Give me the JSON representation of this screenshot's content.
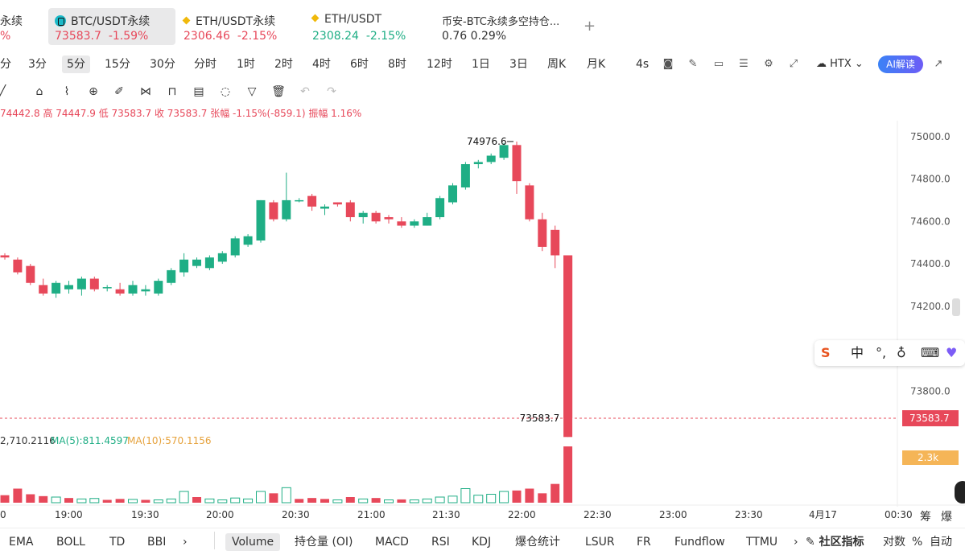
{
  "tabs": [
    {
      "name": "永续",
      "price": "",
      "change": "%"
    },
    {
      "name": "BTC/USDT永续",
      "price": "73583.7",
      "change": "-1.59%"
    },
    {
      "name": "ETH/USDT永续",
      "price": "2306.46",
      "change": "-2.15%"
    },
    {
      "name": "ETH/USDT",
      "price": "2308.24",
      "change": "-2.15%"
    },
    {
      "name": "币安-BTC永续多空持仓...",
      "price": "0.76",
      "change": "0.29%"
    }
  ],
  "add_tab": "+",
  "intervals": [
    "分",
    "3分",
    "5分",
    "15分",
    "30分",
    "分时",
    "1时",
    "2时",
    "4时",
    "6时",
    "8时",
    "12时",
    "1日",
    "3日",
    "周K",
    "月K",
    "4s"
  ],
  "exchange": "HTX",
  "ai_label": "AI解读",
  "ohlc_line": "74442.8 高 74447.9 低 73583.7 收 73583.7 张幅 -1.15%(-859.1) 振幅 1.16%",
  "colors": {
    "up": "#1fae85",
    "down": "#e7485a",
    "ma5": "#1fae85",
    "ma10": "#e6a23c"
  },
  "chart_data": {
    "type": "candlestick",
    "y_ticks": [
      "75000.0",
      "74800.0",
      "74600.0",
      "74400.0",
      "74200.0",
      "74000.0",
      "73800.0"
    ],
    "ylim": [
      73710,
      75075
    ],
    "x_ticks": [
      "0",
      "19:00",
      "19:30",
      "20:00",
      "20:30",
      "21:00",
      "21:30",
      "22:00",
      "22:30",
      "23:00",
      "23:30",
      "4月17",
      "00:30"
    ],
    "high_label": "74976.6",
    "last_label": "73583.7",
    "last_price_tag": "73583.7",
    "candles": [
      [
        74440,
        74450,
        74420,
        74430
      ],
      [
        74420,
        74430,
        74350,
        74360
      ],
      [
        74390,
        74400,
        74300,
        74310
      ],
      [
        74300,
        74330,
        74250,
        74260
      ],
      [
        74260,
        74320,
        74240,
        74310
      ],
      [
        74280,
        74320,
        74260,
        74300
      ],
      [
        74280,
        74340,
        74250,
        74330
      ],
      [
        74330,
        74340,
        74270,
        74280
      ],
      [
        74290,
        74300,
        74270,
        74290
      ],
      [
        74280,
        74310,
        74250,
        74260
      ],
      [
        74260,
        74320,
        74250,
        74300
      ],
      [
        74270,
        74300,
        74250,
        74280
      ],
      [
        74260,
        74330,
        74250,
        74320
      ],
      [
        74310,
        74380,
        74300,
        74370
      ],
      [
        74360,
        74450,
        74340,
        74420
      ],
      [
        74390,
        74430,
        74380,
        74420
      ],
      [
        74380,
        74440,
        74370,
        74430
      ],
      [
        74410,
        74460,
        74400,
        74450
      ],
      [
        74440,
        74530,
        74430,
        74520
      ],
      [
        74490,
        74540,
        74480,
        74530
      ],
      [
        74510,
        74700,
        74500,
        74700
      ],
      [
        74690,
        74700,
        74600,
        74610
      ],
      [
        74610,
        74830,
        74600,
        74700
      ],
      [
        74700,
        74710,
        74690,
        74700
      ],
      [
        74720,
        74730,
        74650,
        74670
      ],
      [
        74660,
        74680,
        74630,
        74670
      ],
      [
        74690,
        74690,
        74670,
        74680
      ],
      [
        74690,
        74700,
        74600,
        74620
      ],
      [
        74620,
        74650,
        74590,
        74640
      ],
      [
        74640,
        74650,
        74590,
        74600
      ],
      [
        74620,
        74630,
        74590,
        74610
      ],
      [
        74600,
        74620,
        74570,
        74580
      ],
      [
        74580,
        74610,
        74570,
        74600
      ],
      [
        74580,
        74640,
        74580,
        74620
      ],
      [
        74620,
        74720,
        74610,
        74710
      ],
      [
        74690,
        74780,
        74680,
        74770
      ],
      [
        74760,
        74880,
        74750,
        74870
      ],
      [
        74870,
        74890,
        74850,
        74880
      ],
      [
        74880,
        74920,
        74870,
        74910
      ],
      [
        74900,
        74970,
        74890,
        74960
      ],
      [
        74960,
        74976.6,
        74730,
        74790
      ],
      [
        74770,
        74780,
        74600,
        74610
      ],
      [
        74610,
        74640,
        74460,
        74480
      ],
      [
        74560,
        74580,
        74380,
        74440
      ],
      [
        74440,
        74440,
        73583.7,
        73583.7
      ]
    ],
    "volume_labels": {
      "total": "2,710.2116",
      "ma5": "MA(5):811.4597",
      "ma10": "MA(10):570.1156",
      "last_tag": "2.3k"
    },
    "volumes": [
      [
        80,
        "down"
      ],
      [
        150,
        "down"
      ],
      [
        90,
        "down"
      ],
      [
        70,
        "down"
      ],
      [
        60,
        "up"
      ],
      [
        50,
        "down"
      ],
      [
        40,
        "up"
      ],
      [
        45,
        "up"
      ],
      [
        30,
        "down"
      ],
      [
        40,
        "down"
      ],
      [
        35,
        "up"
      ],
      [
        30,
        "down"
      ],
      [
        30,
        "up"
      ],
      [
        40,
        "up"
      ],
      [
        120,
        "up"
      ],
      [
        60,
        "down"
      ],
      [
        40,
        "up"
      ],
      [
        30,
        "up"
      ],
      [
        50,
        "up"
      ],
      [
        40,
        "up"
      ],
      [
        120,
        "up"
      ],
      [
        100,
        "down"
      ],
      [
        160,
        "up"
      ],
      [
        40,
        "down"
      ],
      [
        50,
        "down"
      ],
      [
        40,
        "down"
      ],
      [
        30,
        "up"
      ],
      [
        60,
        "down"
      ],
      [
        40,
        "up"
      ],
      [
        50,
        "down"
      ],
      [
        30,
        "up"
      ],
      [
        35,
        "down"
      ],
      [
        30,
        "up"
      ],
      [
        40,
        "up"
      ],
      [
        60,
        "up"
      ],
      [
        70,
        "up"
      ],
      [
        150,
        "up"
      ],
      [
        80,
        "up"
      ],
      [
        90,
        "up"
      ],
      [
        120,
        "up"
      ],
      [
        130,
        "down"
      ],
      [
        150,
        "down"
      ],
      [
        100,
        "down"
      ],
      [
        200,
        "down"
      ],
      [
        600,
        "down"
      ]
    ]
  },
  "indicators": [
    "EMA",
    "BOLL",
    "TD",
    "BBI",
    "›",
    "Volume",
    "持仓量 (OI)",
    "MACD",
    "RSI",
    "KDJ",
    "爆仓统计",
    "LSUR",
    "FR",
    "Fundflow",
    "TTMU",
    "›"
  ],
  "community_label": "社区指标",
  "right_controls": [
    "对数",
    "%",
    "自动"
  ],
  "side_labels": [
    "筹",
    "爆"
  ]
}
